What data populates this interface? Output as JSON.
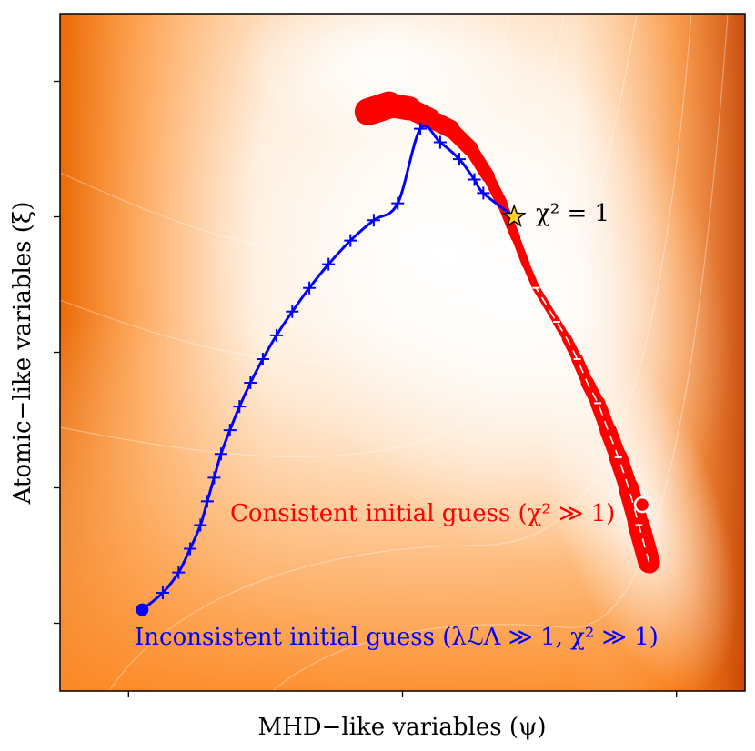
{
  "chart_data": {
    "type": "line",
    "title": "",
    "xlabel": "MHD−like variables (ψ)",
    "ylabel": "Atomic−like variables (ξ)",
    "xlim": [
      0,
      1
    ],
    "ylim": [
      0,
      1
    ],
    "grid": false,
    "ticks_labeled": false,
    "x_ticks": [
      0.1,
      0.5,
      0.9
    ],
    "y_ticks": [
      0.1,
      0.3,
      0.5,
      0.7,
      0.9
    ],
    "colors": {
      "background_low": "#ff7b00",
      "background_high": "#fffaf3",
      "consistent": "#ff0000",
      "inconsistent": "#0000ff",
      "star": "#ffd21f"
    },
    "background": {
      "type": "contourf",
      "colormap": "Oranges",
      "description": "misfit landscape, light valley along the ridge, dark edges"
    },
    "series": [
      {
        "name": "consistent-path",
        "color": "#ff0000",
        "x": [
          0.86,
          0.845,
          0.83,
          0.815,
          0.8,
          0.785,
          0.77,
          0.755,
          0.74,
          0.725,
          0.71,
          0.695,
          0.68,
          0.665,
          0.645,
          0.625,
          0.6,
          0.57,
          0.54,
          0.51,
          0.48,
          0.45
        ],
        "y": [
          0.19,
          0.245,
          0.3,
          0.345,
          0.385,
          0.425,
          0.455,
          0.49,
          0.52,
          0.545,
          0.57,
          0.595,
          0.63,
          0.67,
          0.72,
          0.76,
          0.8,
          0.83,
          0.845,
          0.86,
          0.865,
          0.855
        ]
      },
      {
        "name": "inconsistent-path",
        "color": "#0000ff",
        "x": [
          0.12,
          0.15,
          0.173,
          0.19,
          0.205,
          0.215,
          0.225,
          0.235,
          0.248,
          0.262,
          0.278,
          0.296,
          0.316,
          0.339,
          0.364,
          0.392,
          0.424,
          0.458,
          0.493,
          0.526,
          0.555,
          0.583,
          0.605,
          0.618,
          0.663
        ],
        "y": [
          0.12,
          0.145,
          0.175,
          0.21,
          0.245,
          0.28,
          0.315,
          0.35,
          0.385,
          0.42,
          0.455,
          0.49,
          0.525,
          0.56,
          0.595,
          0.63,
          0.665,
          0.695,
          0.72,
          0.83,
          0.81,
          0.785,
          0.755,
          0.735,
          0.7
        ]
      }
    ],
    "markers": [
      {
        "name": "inconsistent-start",
        "shape": "filled-circle",
        "x": 0.12,
        "y": 0.12
      },
      {
        "name": "consistent-start",
        "shape": "open-circle",
        "x": 0.85,
        "y": 0.275
      },
      {
        "name": "solution",
        "shape": "star",
        "x": 0.663,
        "y": 0.7
      }
    ],
    "annotations": {
      "chi_equals_one": "χ² = 1",
      "consistent_label": "Consistent initial guess (χ² ≫ 1)",
      "inconsistent_label": "Inconsistent initial guess (λℒΛ ≫ 1, χ² ≫ 1)"
    }
  }
}
